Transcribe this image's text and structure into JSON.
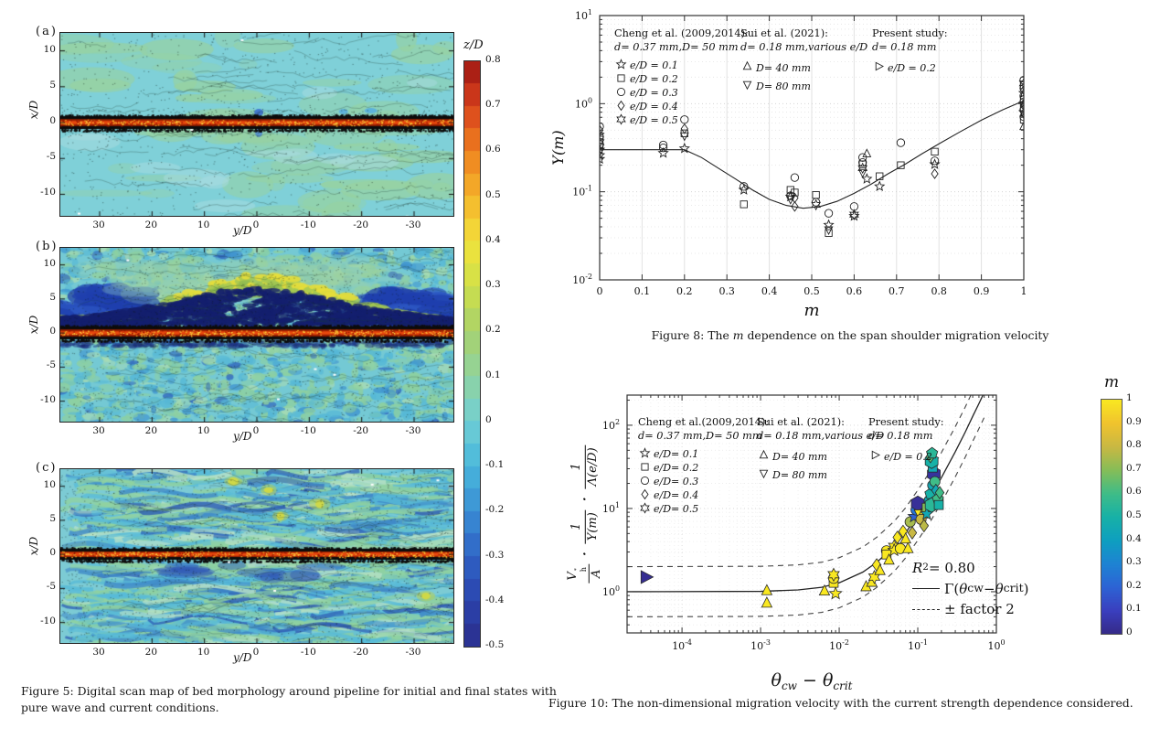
{
  "fig5": {
    "caption": "Figure 5: Digital scan map of bed morphology around pipeline for initial and final states with pure wave and current conditions.",
    "panels": [
      {
        "label": "(a)"
      },
      {
        "label": "(b)"
      },
      {
        "label": "(c)"
      }
    ],
    "axes": {
      "xlabel": "y/D",
      "ylabel": "x/D"
    },
    "colorbar": {
      "title_z": "z",
      "title_slash": "/",
      "title_D": "D"
    }
  },
  "fig8": {
    "caption_prefix": "Figure 8: The ",
    "caption_var": "m",
    "caption_suffix": " dependence on the span shoulder migration velocity",
    "xlabel": "m",
    "ylabel": "Υ(m)",
    "legend": {
      "cols": [
        {
          "title": "Cheng et al. (2009,2014):",
          "sub": "d= 0.37 mm,D= 50 mm",
          "items": [
            {
              "marker": "star5",
              "label": "e/D = 0.1"
            },
            {
              "marker": "square",
              "label": "e/D = 0.2"
            },
            {
              "marker": "circle",
              "label": "e/D = 0.3"
            },
            {
              "marker": "diamond",
              "label": "e/D = 0.4"
            },
            {
              "marker": "hexagram",
              "label": "e/D = 0.5"
            }
          ]
        },
        {
          "title": "Sui et al. (2021):",
          "sub": "d= 0.18 mm,various e/D",
          "items": [
            {
              "marker": "triup",
              "label": "D= 40 mm"
            },
            {
              "marker": "tridown",
              "label": "D= 80 mm"
            }
          ]
        },
        {
          "title": "Present study:",
          "sub": "d= 0.18 mm",
          "items": [
            {
              "marker": "triright",
              "label": "e/D = 0.2"
            }
          ]
        }
      ]
    }
  },
  "fig10": {
    "caption": "Figure 10: The non-dimensional migration velocity with the current strength dependence considered.",
    "xlabel_parts": {
      "theta": "θ",
      "sub_cw": "cw",
      "minus": " − ",
      "sub_crit": "crit"
    },
    "ylabel_parts": {
      "V": "V",
      "sup": "*",
      "sub": "h",
      "den1": "A",
      "dot": "·",
      "one": "1",
      "den2": "Υ(m)",
      "den3": "Λ(e/D)"
    },
    "annotations": {
      "R": "R",
      "Rsup": "2",
      "Req": " = 0.80",
      "gamma_open": "Γ(",
      "theta": "θ",
      "sub_cw": "cw",
      "minus": " − ",
      "sub_crit": "crit",
      "gamma_close": ")",
      "factor": "± factor 2"
    },
    "colorbar_title": "m",
    "legend": {
      "cols": [
        {
          "title": "Cheng et al.(2009,2014):",
          "sub": "d= 0.37 mm,D= 50 mm",
          "items": [
            {
              "marker": "star5",
              "label": "e/D= 0.1"
            },
            {
              "marker": "square",
              "label": "e/D= 0.2"
            },
            {
              "marker": "circle",
              "label": "e/D= 0.3"
            },
            {
              "marker": "diamond",
              "label": "e/D= 0.4"
            },
            {
              "marker": "hexagram",
              "label": "e/D= 0.5"
            }
          ]
        },
        {
          "title": "Sui et al. (2021):",
          "sub": "d= 0.18 mm,various e/D",
          "items": [
            {
              "marker": "triup",
              "label": "D= 40 mm"
            },
            {
              "marker": "tridown",
              "label": "D= 80 mm"
            }
          ]
        },
        {
          "title": "Present study:",
          "sub": "d= 0.18 mm",
          "items": [
            {
              "marker": "triright",
              "label": "e/D = 0.2"
            }
          ]
        }
      ]
    }
  },
  "chart_data": [
    {
      "id": "fig8",
      "type": "scatter",
      "xlabel": "m",
      "ylabel": "Υ(m)",
      "xlim": [
        0,
        1
      ],
      "ylim": [
        0.01,
        10
      ],
      "xlog": false,
      "ylog": true,
      "grid": true,
      "xticks": [
        0,
        0.1,
        0.2,
        0.3,
        0.4,
        0.5,
        0.6,
        0.7,
        0.8,
        0.9,
        1
      ],
      "xtick_labels": [
        "0",
        "0.1",
        "0.2",
        "0.3",
        "0.4",
        "0.5",
        "0.6",
        "0.7",
        "0.8",
        "0.9",
        "1"
      ],
      "ytick_exponents": [
        -2,
        -1,
        0,
        1
      ],
      "marker_meanings": {
        "star5": "Cheng et al. e/D=0.1",
        "square": "Cheng et al. e/D=0.2",
        "circle": "Cheng et al. e/D=0.3",
        "diamond": "Cheng et al. e/D=0.4",
        "hexagram": "Cheng et al. e/D=0.5",
        "triup": "Sui et al. D=40 mm",
        "tridown": "Sui et al. D=80 mm",
        "triright": "Present study e/D=0.2"
      },
      "points": [
        [
          0,
          0.55,
          "circle"
        ],
        [
          0,
          0.5,
          "diamond"
        ],
        [
          0,
          0.46,
          "triright"
        ],
        [
          0,
          0.42,
          "circle"
        ],
        [
          0,
          0.39,
          "square"
        ],
        [
          0,
          0.365,
          "hexagram"
        ],
        [
          0,
          0.345,
          "circle"
        ],
        [
          0,
          0.325,
          "square"
        ],
        [
          0,
          0.3,
          "star5"
        ],
        [
          0,
          0.285,
          "tridown"
        ],
        [
          0,
          0.26,
          "star5"
        ],
        [
          0,
          0.235,
          "star5"
        ],
        [
          0.15,
          0.34,
          "circle"
        ],
        [
          0.15,
          0.315,
          "circle"
        ],
        [
          0.15,
          0.275,
          "star5"
        ],
        [
          0.2,
          0.66,
          "circle"
        ],
        [
          0.2,
          0.52,
          "diamond"
        ],
        [
          0.2,
          0.46,
          "square"
        ],
        [
          0.2,
          0.43,
          "tridown"
        ],
        [
          0.2,
          0.31,
          "star5"
        ],
        [
          0.34,
          0.115,
          "circle"
        ],
        [
          0.34,
          0.105,
          "star5"
        ],
        [
          0.34,
          0.072,
          "square"
        ],
        [
          0.45,
          0.105,
          "square"
        ],
        [
          0.45,
          0.09,
          "circle"
        ],
        [
          0.45,
          0.088,
          "star5"
        ],
        [
          0.45,
          0.082,
          "tridown"
        ],
        [
          0.46,
          0.145,
          "circle"
        ],
        [
          0.46,
          0.098,
          "square"
        ],
        [
          0.46,
          0.085,
          "diamond"
        ],
        [
          0.46,
          0.068,
          "diamond"
        ],
        [
          0.51,
          0.092,
          "square"
        ],
        [
          0.51,
          0.076,
          "circle"
        ],
        [
          0.51,
          0.071,
          "hexagram"
        ],
        [
          0.54,
          0.057,
          "circle"
        ],
        [
          0.54,
          0.042,
          "star5"
        ],
        [
          0.54,
          0.037,
          "tridown"
        ],
        [
          0.54,
          0.034,
          "square"
        ],
        [
          0.6,
          0.068,
          "circle"
        ],
        [
          0.6,
          0.055,
          "hexagram"
        ],
        [
          0.6,
          0.053,
          "star5"
        ],
        [
          0.62,
          0.245,
          "circle"
        ],
        [
          0.62,
          0.215,
          "circle"
        ],
        [
          0.62,
          0.205,
          "square"
        ],
        [
          0.63,
          0.27,
          "triup"
        ],
        [
          0.62,
          0.185,
          "hexagram"
        ],
        [
          0.62,
          0.165,
          "tridown"
        ],
        [
          0.63,
          0.14,
          "star5"
        ],
        [
          0.66,
          0.15,
          "square"
        ],
        [
          0.66,
          0.115,
          "star5"
        ],
        [
          0.71,
          0.36,
          "circle"
        ],
        [
          0.71,
          0.2,
          "square"
        ],
        [
          0.79,
          0.285,
          "square"
        ],
        [
          0.79,
          0.225,
          "circle"
        ],
        [
          0.79,
          0.205,
          "star5"
        ],
        [
          0.79,
          0.16,
          "diamond"
        ],
        [
          1,
          1.85,
          "circle"
        ],
        [
          1,
          1.7,
          "hexagram"
        ],
        [
          1,
          1.62,
          "square"
        ],
        [
          1,
          1.5,
          "circle"
        ],
        [
          1,
          1.42,
          "diamond"
        ],
        [
          1,
          1.32,
          "star5"
        ],
        [
          1,
          1.22,
          "circle"
        ],
        [
          1,
          1.12,
          "square"
        ],
        [
          1,
          1.05,
          "circle"
        ],
        [
          1,
          1.0,
          "star5"
        ],
        [
          1,
          0.95,
          "diamond"
        ],
        [
          1,
          0.9,
          "square"
        ],
        [
          1,
          0.85,
          "circle"
        ],
        [
          1,
          0.8,
          "star5"
        ],
        [
          1,
          0.76,
          "tridown"
        ],
        [
          1,
          0.71,
          "circle"
        ],
        [
          1,
          0.66,
          "square"
        ],
        [
          1,
          0.55,
          "triup"
        ]
      ],
      "curve": [
        [
          0,
          0.3
        ],
        [
          0.2,
          0.3
        ],
        [
          0.24,
          0.245
        ],
        [
          0.28,
          0.185
        ],
        [
          0.32,
          0.14
        ],
        [
          0.36,
          0.105
        ],
        [
          0.4,
          0.082
        ],
        [
          0.44,
          0.07
        ],
        [
          0.48,
          0.065
        ],
        [
          0.52,
          0.068
        ],
        [
          0.56,
          0.078
        ],
        [
          0.6,
          0.096
        ],
        [
          0.64,
          0.122
        ],
        [
          0.68,
          0.16
        ],
        [
          0.72,
          0.205
        ],
        [
          0.76,
          0.27
        ],
        [
          0.8,
          0.35
        ],
        [
          0.85,
          0.48
        ],
        [
          0.9,
          0.65
        ],
        [
          0.95,
          0.85
        ],
        [
          1,
          1.08
        ]
      ]
    },
    {
      "id": "fig10",
      "type": "scatter",
      "xlabel": "θ_cw − θ_crit",
      "ylabel": "(V*_h/A)·(1/Υ(m))·(1/Λ(e/D))",
      "xlim": [
        2e-05,
        1
      ],
      "ylim": [
        0.32,
        230
      ],
      "xlog": true,
      "ylog": true,
      "grid": true,
      "xtick_exponents": [
        -4,
        -3,
        -2,
        -1,
        0
      ],
      "ytick_exponents": [
        0,
        1,
        2
      ],
      "r_squared": 0.8,
      "fit_label": "Γ(θcw − θcrit)",
      "band_label": "± factor 2",
      "band_factor": 2,
      "colorbar": {
        "label": "m",
        "range": [
          0,
          1
        ],
        "ticks": [
          1,
          0.9,
          0.8,
          0.7,
          0.6,
          0.5,
          0.4,
          0.3,
          0.2,
          0.1,
          0
        ],
        "stops": [
          [
            0,
            "#352a87"
          ],
          [
            0.1,
            "#3a3fbf"
          ],
          [
            0.2,
            "#2d63d4"
          ],
          [
            0.3,
            "#1e83d3"
          ],
          [
            0.4,
            "#0e9fc0"
          ],
          [
            0.5,
            "#17b1a7"
          ],
          [
            0.6,
            "#3fbc88"
          ],
          [
            0.7,
            "#85bd58"
          ],
          [
            0.8,
            "#c9b843"
          ],
          [
            0.9,
            "#f0c32e"
          ],
          [
            1,
            "#f9e821"
          ]
        ]
      },
      "points": [
        [
          3.5e-05,
          1.5,
          0.02,
          "triright"
        ],
        [
          0.0012,
          1.03,
          1,
          "triup"
        ],
        [
          0.0012,
          0.73,
          1,
          "triup"
        ],
        [
          0.0065,
          1.02,
          1,
          "triup"
        ],
        [
          0.009,
          0.95,
          1,
          "star5"
        ],
        [
          0.0085,
          1.28,
          1,
          "square"
        ],
        [
          0.0085,
          1.45,
          1,
          "circle"
        ],
        [
          0.0085,
          1.6,
          1,
          "hexagram"
        ],
        [
          0.022,
          1.15,
          1,
          "triup"
        ],
        [
          0.026,
          1.3,
          1,
          "triup"
        ],
        [
          0.028,
          1.5,
          1,
          "hexagram"
        ],
        [
          0.03,
          2.1,
          1,
          "diamond"
        ],
        [
          0.033,
          1.8,
          1,
          "triup"
        ],
        [
          0.04,
          3.1,
          1,
          "circle"
        ],
        [
          0.04,
          2.8,
          1,
          "square"
        ],
        [
          0.043,
          2.4,
          1,
          "triup"
        ],
        [
          0.05,
          3.5,
          1,
          "hexagram"
        ],
        [
          0.05,
          3.15,
          1,
          "star5"
        ],
        [
          0.055,
          4.5,
          1,
          "diamond"
        ],
        [
          0.06,
          3.3,
          1,
          "circle"
        ],
        [
          0.065,
          5.3,
          1,
          "diamond"
        ],
        [
          0.07,
          4.3,
          1,
          "triup"
        ],
        [
          0.075,
          3.3,
          1,
          "triup"
        ],
        [
          0.08,
          6.9,
          0.75,
          "circle"
        ],
        [
          0.085,
          5.1,
          0.8,
          "diamond"
        ],
        [
          0.09,
          8.0,
          0.2,
          "star5"
        ],
        [
          0.095,
          9.6,
          0.25,
          "circle"
        ],
        [
          0.1,
          11.5,
          0.03,
          "hexagon"
        ],
        [
          0.105,
          8.6,
          1,
          "tridown"
        ],
        [
          0.115,
          8.6,
          1,
          "triup"
        ],
        [
          0.11,
          7.4,
          0.8,
          "circle"
        ],
        [
          0.12,
          6.2,
          0.78,
          "diamond"
        ],
        [
          0.13,
          10.2,
          0.7,
          "square"
        ],
        [
          0.13,
          8.6,
          0.45,
          "star5"
        ],
        [
          0.14,
          12.5,
          0.45,
          "circle"
        ],
        [
          0.145,
          15,
          0.5,
          "pentagon"
        ],
        [
          0.15,
          11,
          0.55,
          "hexagon"
        ],
        [
          0.155,
          19,
          0.45,
          "circle"
        ],
        [
          0.16,
          26,
          0.04,
          "hexagon"
        ],
        [
          0.165,
          21,
          0.6,
          "circle"
        ],
        [
          0.17,
          16.5,
          0.45,
          "diamond"
        ],
        [
          0.18,
          13,
          0.6,
          "pentagon"
        ],
        [
          0.185,
          11,
          0.5,
          "square"
        ],
        [
          0.19,
          15.5,
          0.6,
          "diamond"
        ],
        [
          0.155,
          31,
          0.45,
          "square"
        ],
        [
          0.15,
          37,
          0.5,
          "hexagon"
        ],
        [
          0.145,
          42,
          0.65,
          "diamond"
        ],
        [
          0.152,
          46,
          0.55,
          "pentagon"
        ]
      ],
      "curve": [
        [
          2e-05,
          1.0
        ],
        [
          0.001,
          1.01
        ],
        [
          0.003,
          1.05
        ],
        [
          0.006,
          1.13
        ],
        [
          0.01,
          1.28
        ],
        [
          0.02,
          1.72
        ],
        [
          0.03,
          2.25
        ],
        [
          0.05,
          3.5
        ],
        [
          0.07,
          5.1
        ],
        [
          0.1,
          8.3
        ],
        [
          0.15,
          14.8
        ],
        [
          0.2,
          23.5
        ],
        [
          0.3,
          48
        ],
        [
          0.4,
          82
        ],
        [
          0.5,
          128
        ],
        [
          0.6,
          182
        ],
        [
          0.7,
          248
        ]
      ]
    },
    {
      "id": "fig5",
      "type": "heatmap",
      "panels": [
        "(a)",
        "(b)",
        "(c)"
      ],
      "xlabel": "y/D",
      "ylabel": "x/D",
      "xticks": [
        30,
        20,
        10,
        0,
        -10,
        -20,
        -30
      ],
      "yticks": [
        10,
        5,
        0,
        -5,
        -10
      ],
      "xlim": [
        37.5,
        -37.5
      ],
      "ylim": [
        12.5,
        -13
      ],
      "pipeline_position": "x/D = 0",
      "colorbar": {
        "label": "z/D",
        "range": [
          -0.5,
          0.8
        ],
        "ticks": [
          0.8,
          0.7,
          0.6,
          0.5,
          0.4,
          0.3,
          0.2,
          0.1,
          0,
          -0.1,
          -0.2,
          -0.3,
          -0.4,
          -0.5
        ],
        "stops": [
          [
            0,
            "#2b2e8c"
          ],
          [
            0.08,
            "#2b44ae"
          ],
          [
            0.155,
            "#2f63c6"
          ],
          [
            0.23,
            "#3a8fd4"
          ],
          [
            0.31,
            "#49b8dc"
          ],
          [
            0.385,
            "#72cfd4"
          ],
          [
            0.46,
            "#8fd3a0"
          ],
          [
            0.54,
            "#a9d26b"
          ],
          [
            0.615,
            "#cfe04a"
          ],
          [
            0.69,
            "#f2e23b"
          ],
          [
            0.77,
            "#f5b32b"
          ],
          [
            0.85,
            "#ee7d1f"
          ],
          [
            0.925,
            "#d8401c"
          ],
          [
            1,
            "#9c1513"
          ]
        ]
      }
    }
  ]
}
